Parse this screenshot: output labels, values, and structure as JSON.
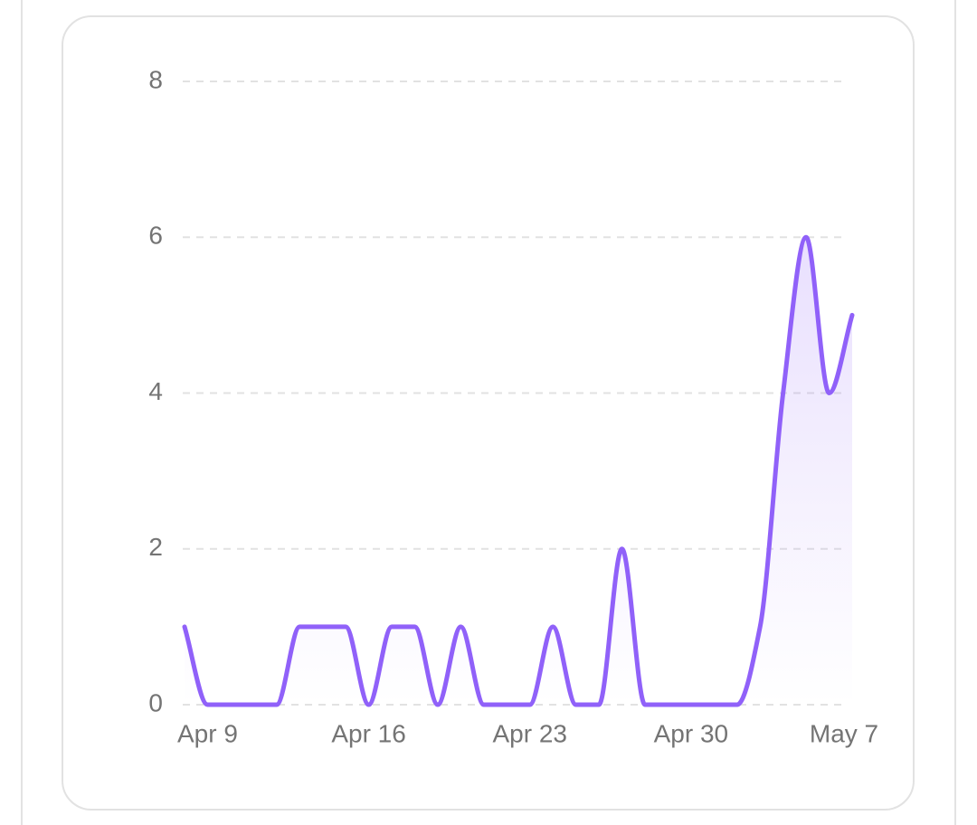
{
  "chart_data": {
    "type": "line",
    "categories": [
      null,
      "Apr 9",
      null,
      null,
      null,
      null,
      null,
      null,
      "Apr 16",
      null,
      null,
      null,
      null,
      null,
      null,
      "Apr 23",
      null,
      null,
      null,
      null,
      null,
      null,
      "Apr 30",
      null,
      null,
      null,
      null,
      null,
      null,
      "May 7"
    ],
    "series": [
      {
        "color": "#9061f9",
        "values": [
          1,
          0,
          0,
          0,
          0,
          1,
          1,
          1,
          0,
          1,
          1,
          0,
          1,
          0,
          0,
          0,
          1,
          0,
          0,
          2,
          0,
          0,
          0,
          0,
          0,
          1,
          4,
          6,
          4,
          5
        ]
      }
    ],
    "ylim": [
      0,
      8
    ],
    "yticks": [
      0,
      2,
      4,
      6,
      8
    ],
    "grid": true
  }
}
